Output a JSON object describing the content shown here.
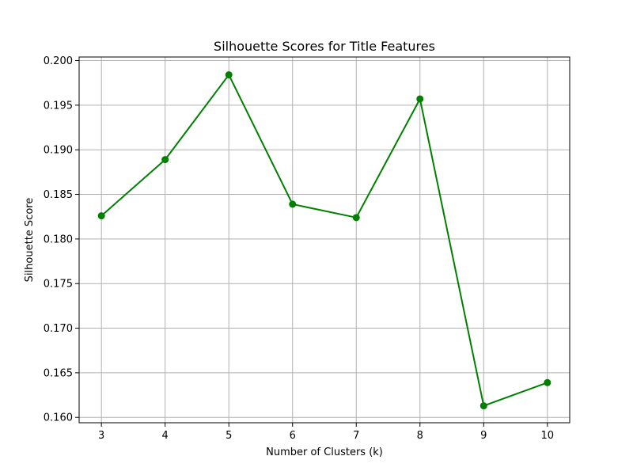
{
  "chart_data": {
    "type": "line",
    "title": "Silhouette Scores for Title Features",
    "xlabel": "Number of Clusters (k)",
    "ylabel": "Silhouette Score",
    "x": [
      3,
      4,
      5,
      6,
      7,
      8,
      9,
      10
    ],
    "series": [
      {
        "values": [
          0.1826,
          0.1889,
          0.1984,
          0.1839,
          0.1824,
          0.1957,
          0.1613,
          0.1639
        ],
        "color": "#008000",
        "marker": "circle"
      }
    ],
    "xlim": [
      2.65,
      10.35
    ],
    "ylim": [
      0.1594,
      0.2004
    ],
    "xticks": [
      3,
      4,
      5,
      6,
      7,
      8,
      9,
      10
    ],
    "yticks": [
      0.16,
      0.165,
      0.17,
      0.175,
      0.18,
      0.185,
      0.19,
      0.195,
      0.2
    ],
    "ytick_labels": [
      "0.160",
      "0.165",
      "0.170",
      "0.175",
      "0.180",
      "0.185",
      "0.190",
      "0.195",
      "0.200"
    ],
    "grid": true,
    "grid_color": "#b0b0b0",
    "legend": "none"
  }
}
